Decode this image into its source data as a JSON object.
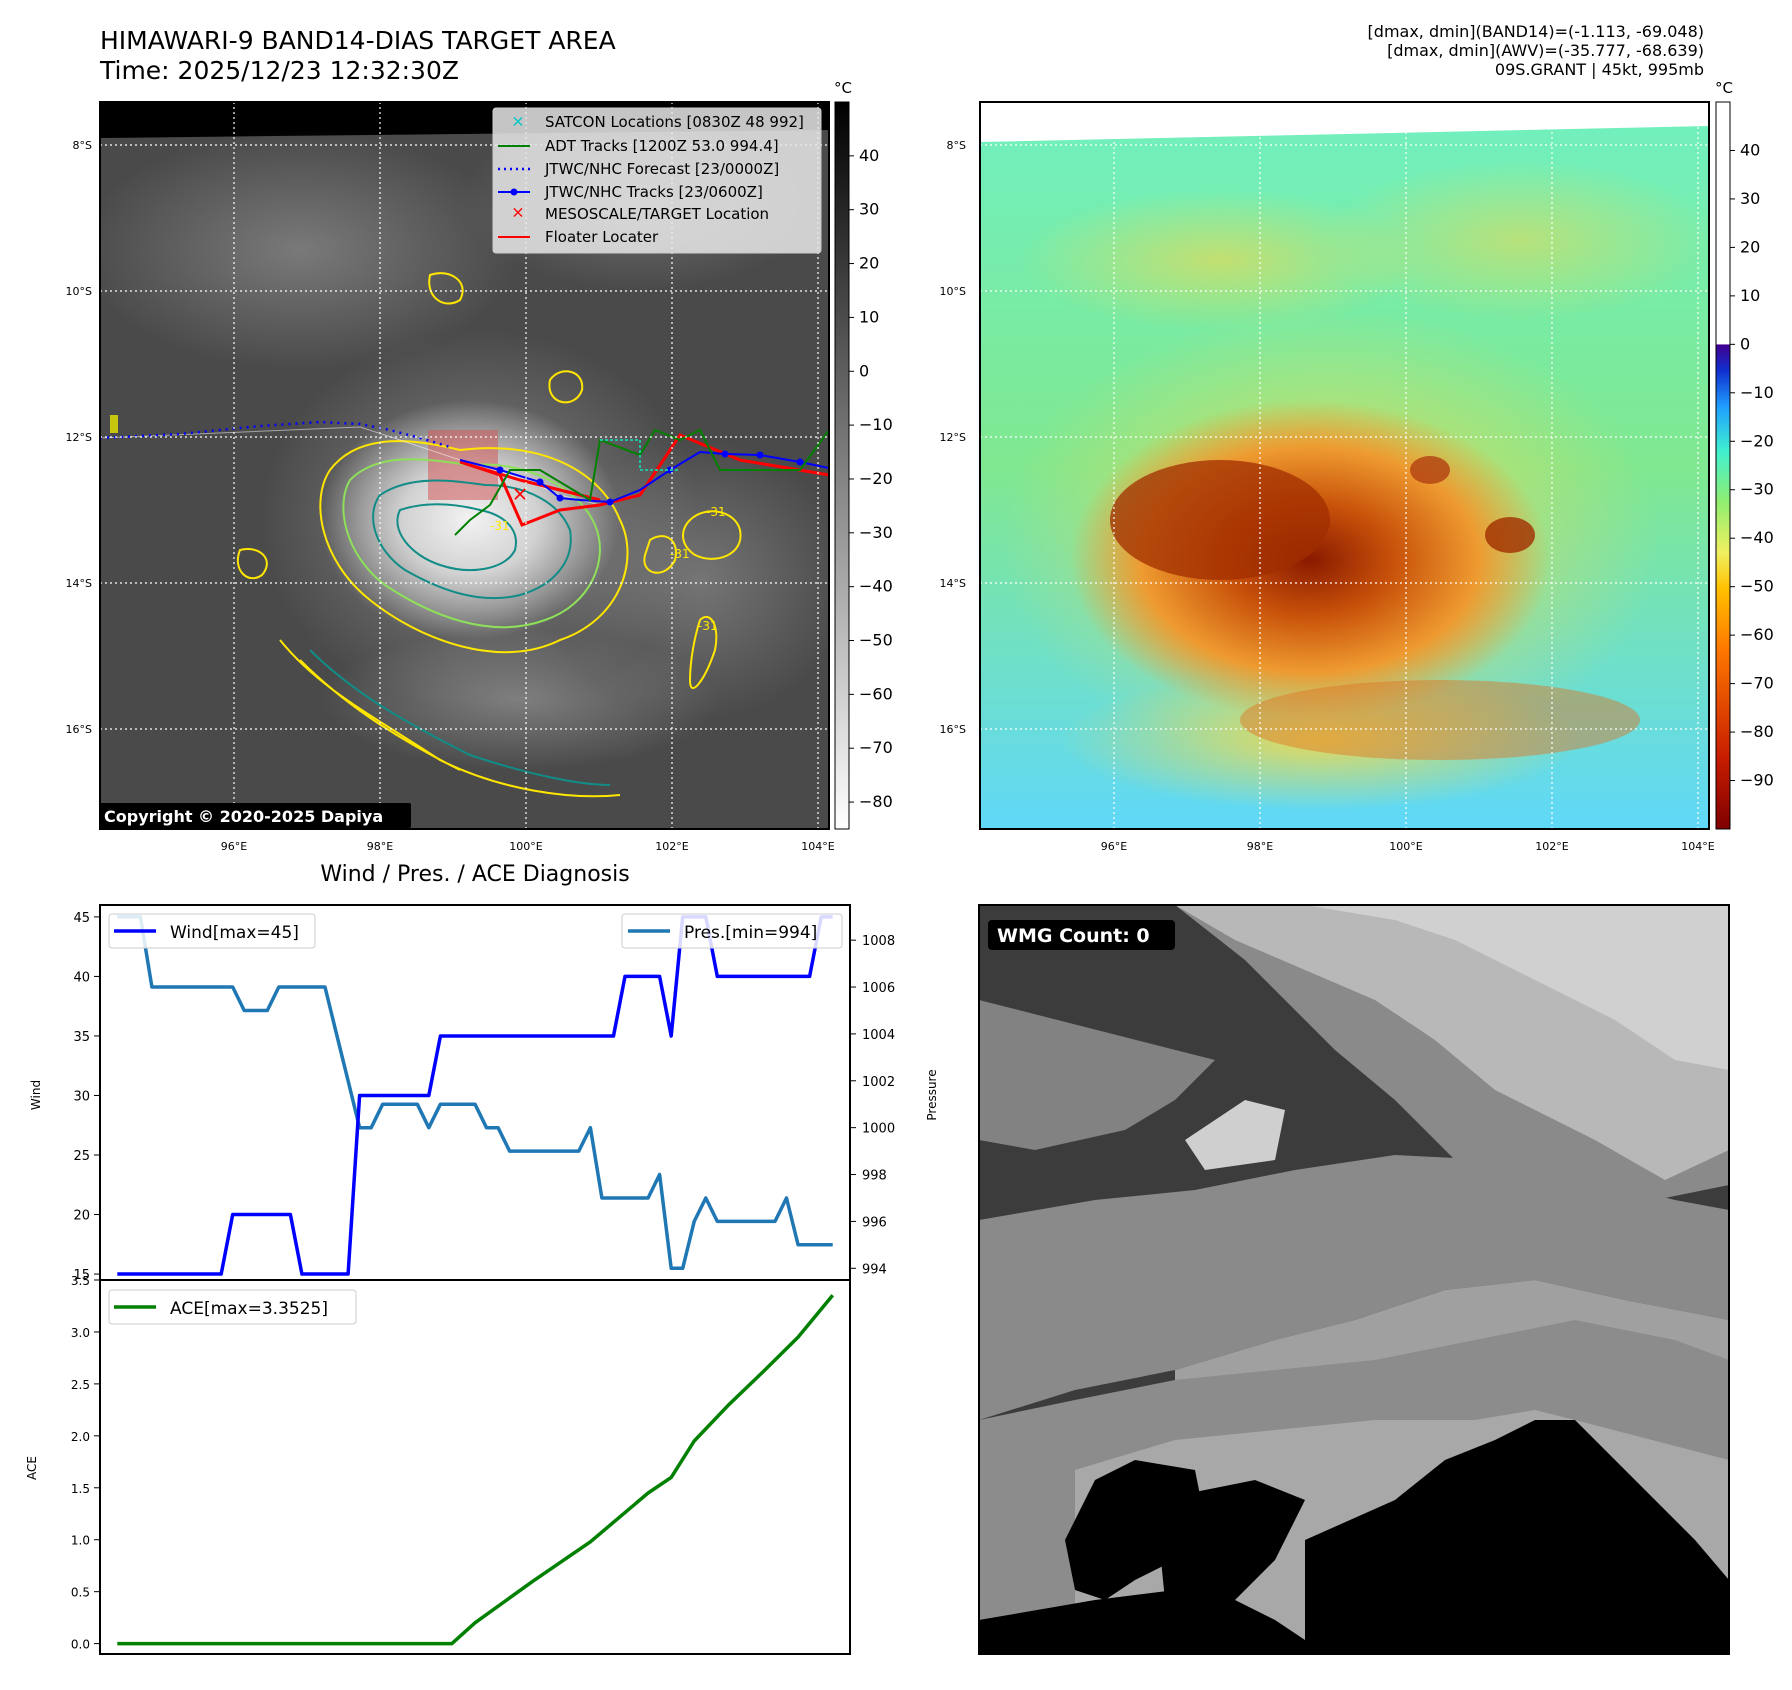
{
  "header": {
    "title_line1": "HIMAWARI-9 BAND14-DIAS TARGET AREA",
    "title_line2": "Time: 2025/12/23 12:32:30Z",
    "info_line1": "[dmax, dmin](BAND14)=(-1.113, -69.048)",
    "info_line2": "[dmax, dmin](AWV)=(-35.777, -68.639)",
    "info_line3": "09S.GRANT | 45kt, 995mb"
  },
  "colors": {
    "wind": "#0000ff",
    "pressure": "#1f77b4",
    "ace": "#008000",
    "adt": "#008000",
    "jtwc_forecast": "#0000ff",
    "jtwc_track": "#0000ff",
    "satcon": "#00c8c8",
    "target": "#ff0000",
    "floater": "#ff0000",
    "contour_yellow": "#ffe600",
    "contour_lightgreen": "#8ee05a",
    "contour_teal": "#128c86"
  },
  "map": {
    "lon_ticks": [
      "96°E",
      "98°E",
      "100°E",
      "102°E",
      "104°E"
    ],
    "lat_ticks": [
      "8°S",
      "10°S",
      "12°S",
      "14°S",
      "16°S"
    ],
    "lon_values": [
      96,
      98,
      100,
      102,
      104
    ],
    "lat_values": [
      -8,
      -10,
      -12,
      -14,
      -16
    ],
    "lon_range": [
      94.2,
      104.2
    ],
    "lat_range": [
      -17.4,
      -7.4
    ],
    "colorbar_unit": "°C",
    "colorbar_left_ticks": [
      "40",
      "30",
      "20",
      "10",
      "0",
      "−10",
      "−20",
      "−30",
      "−40",
      "−50",
      "−60",
      "−70",
      "−80"
    ],
    "colorbar_left_values": [
      40,
      30,
      20,
      10,
      0,
      -10,
      -20,
      -30,
      -40,
      -50,
      -60,
      -70,
      -80
    ],
    "colorbar_left_range": [
      -85,
      50
    ],
    "colorbar_right_ticks": [
      "40",
      "30",
      "20",
      "10",
      "0",
      "−10",
      "−20",
      "−30",
      "−40",
      "−50",
      "−60",
      "−70",
      "−80",
      "−90"
    ],
    "colorbar_right_values": [
      40,
      30,
      20,
      10,
      0,
      -10,
      -20,
      -30,
      -40,
      -50,
      -60,
      -70,
      -80,
      -90
    ],
    "colorbar_right_range": [
      -100,
      50
    ],
    "copyright": "Copyright © 2020-2025 Dapiya",
    "legend": [
      {
        "label": "SATCON Locations [0830Z 48 992]",
        "marker": "x",
        "color": "#00c8c8"
      },
      {
        "label": "ADT Tracks [1200Z 53.0 994.4]",
        "marker": "line",
        "color": "#008000"
      },
      {
        "label": "JTWC/NHC Forecast [23/0000Z]",
        "marker": "dotted",
        "color": "#0000ff"
      },
      {
        "label": "JTWC/NHC Tracks [23/0600Z]",
        "marker": "line-dot",
        "color": "#0000ff"
      },
      {
        "label": "MESOSCALE/TARGET Location",
        "marker": "x",
        "color": "#ff0000"
      },
      {
        "label": "Floater Locater",
        "marker": "line",
        "color": "#ff0000"
      }
    ],
    "contour_labels": [
      "-31",
      "-31",
      "-31",
      "-31"
    ]
  },
  "lower_left": {
    "title": "Wind / Pres. / ACE Diagnosis"
  },
  "lower_right": {
    "badge": "WMG Count: 0"
  },
  "chart_data": [
    {
      "type": "line",
      "title": "",
      "xlabel": "",
      "ylabel": "Wind",
      "ylabel_right": "Pressure",
      "ylim": [
        14.5,
        46
      ],
      "ylim_right": [
        993.5,
        1009.5
      ],
      "yticks": [
        15,
        20,
        25,
        30,
        35,
        40,
        45
      ],
      "yticks_right": [
        994,
        996,
        998,
        1000,
        1002,
        1004,
        1006,
        1008
      ],
      "x": [
        0,
        1,
        2,
        3,
        4,
        5,
        6,
        7,
        8,
        9,
        10,
        11,
        12,
        13,
        14,
        15,
        16,
        17,
        18,
        19,
        20,
        21,
        22,
        23,
        24,
        25,
        26,
        27,
        28,
        29,
        30,
        31,
        32,
        33,
        34,
        35,
        36,
        37,
        38,
        39,
        40,
        41,
        42,
        43,
        44,
        45,
        46,
        47,
        48,
        49,
        50,
        51,
        52,
        53,
        54,
        55,
        56,
        57,
        58,
        59,
        60,
        61,
        62
      ],
      "series": [
        {
          "name": "Wind[max=45]",
          "axis": "left",
          "values": [
            15,
            15,
            15,
            15,
            15,
            15,
            15,
            15,
            15,
            15,
            20,
            20,
            20,
            20,
            20,
            20,
            15,
            15,
            15,
            15,
            15,
            30,
            30,
            30,
            30,
            30,
            30,
            30,
            35,
            35,
            35,
            35,
            35,
            35,
            35,
            35,
            35,
            35,
            35,
            35,
            35,
            35,
            35,
            35,
            40,
            40,
            40,
            40,
            35,
            45,
            45,
            45,
            40,
            40,
            40,
            40,
            40,
            40,
            40,
            40,
            40,
            45,
            45
          ]
        },
        {
          "name": "Pres.[min=994]",
          "axis": "right",
          "values": [
            1009,
            1009,
            1009,
            1006,
            1006,
            1006,
            1006,
            1006,
            1006,
            1006,
            1006,
            1005,
            1005,
            1005,
            1006,
            1006,
            1006,
            1006,
            1006,
            1004,
            1002,
            1000,
            1000,
            1001,
            1001,
            1001,
            1001,
            1000,
            1001,
            1001,
            1001,
            1001,
            1000,
            1000,
            999,
            999,
            999,
            999,
            999,
            999,
            999,
            1000,
            997,
            997,
            997,
            997,
            997,
            998,
            994,
            994,
            996,
            997,
            996,
            996,
            996,
            996,
            996,
            996,
            997,
            995,
            995,
            995,
            995
          ]
        }
      ],
      "legend": [
        "Wind[max=45]",
        "Pres.[min=994]"
      ]
    },
    {
      "type": "line",
      "title": "",
      "ylabel": "ACE",
      "ylim": [
        -0.1,
        3.5
      ],
      "yticks": [
        0.0,
        0.5,
        1.0,
        1.5,
        2.0,
        2.5,
        3.0,
        3.5
      ],
      "ytick_labels": [
        "0.0",
        "0.5",
        "1.0",
        "1.5",
        "2.0",
        "2.5",
        "3.0",
        "3.5"
      ],
      "x": [
        0,
        29,
        31,
        36,
        41,
        46,
        48,
        50,
        53,
        56,
        59,
        62
      ],
      "series": [
        {
          "name": "ACE[max=3.3525]",
          "values": [
            0.0,
            0.0,
            0.2,
            0.6,
            0.98,
            1.45,
            1.6,
            1.95,
            2.3,
            2.62,
            2.95,
            3.3525
          ]
        }
      ],
      "legend": [
        "ACE[max=3.3525]"
      ]
    }
  ]
}
